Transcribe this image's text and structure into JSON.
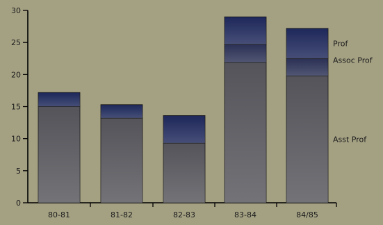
{
  "chart_data": {
    "type": "bar",
    "stacked": true,
    "categories": [
      "80-81",
      "81-82",
      "82-83",
      "83-84",
      "84/85"
    ],
    "ylim": [
      0,
      30
    ],
    "yticks": [
      0,
      5,
      10,
      15,
      20,
      25,
      30
    ],
    "ytick_labels": [
      "0",
      "5",
      "10",
      "15",
      "20",
      "25",
      "30"
    ],
    "grid": false,
    "series": [
      {
        "name": "Asst Prof",
        "values": [
          15,
          13.2,
          9.3,
          21.9,
          19.8
        ],
        "color": "#55545a"
      },
      {
        "name": "Assoc Prof",
        "values": [
          0,
          0,
          0,
          2.8,
          2.7
        ],
        "color": "#2b3155"
      },
      {
        "name": "Prof",
        "values": [
          2.2,
          2.1,
          4.3,
          4.3,
          4.7
        ],
        "color": "#1e285a"
      }
    ],
    "legend_position": "right"
  }
}
